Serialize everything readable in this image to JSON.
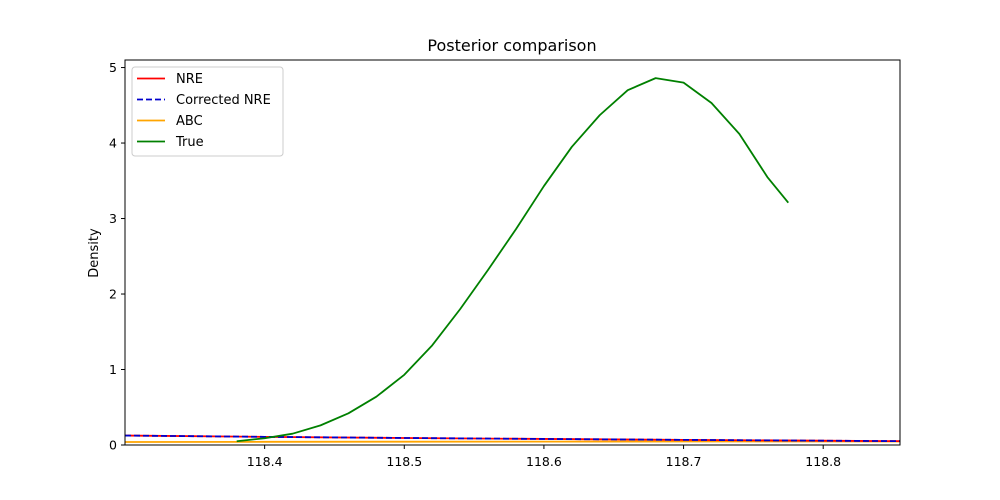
{
  "chart_data": {
    "type": "line",
    "title": "Posterior comparison",
    "xlabel": "",
    "ylabel": "Density",
    "xlim": [
      118.3,
      118.855
    ],
    "ylim": [
      0,
      5.1
    ],
    "xticks": [
      "118.4",
      "118.5",
      "118.6",
      "118.7",
      "118.8"
    ],
    "xtick_values": [
      118.4,
      118.5,
      118.6,
      118.7,
      118.8
    ],
    "yticks": [
      "0",
      "1",
      "2",
      "3",
      "4",
      "5"
    ],
    "ytick_values": [
      0,
      1,
      2,
      3,
      4,
      5
    ],
    "grid": false,
    "legend_position": "top-left",
    "series": [
      {
        "name": "NRE",
        "color": "#ff0000",
        "dash": "solid",
        "x": [
          118.3,
          118.4,
          118.5,
          118.6,
          118.7,
          118.8,
          118.855
        ],
        "y": [
          0.125,
          0.108,
          0.093,
          0.08,
          0.068,
          0.057,
          0.051
        ]
      },
      {
        "name": "Corrected NRE",
        "color": "#0000cc",
        "dash": "dashed",
        "x": [
          118.3,
          118.4,
          118.5,
          118.6,
          118.7,
          118.8,
          118.855
        ],
        "y": [
          0.125,
          0.108,
          0.093,
          0.08,
          0.068,
          0.057,
          0.051
        ]
      },
      {
        "name": "ABC",
        "color": "#ffa500",
        "dash": "solid",
        "x": [
          118.3,
          118.4,
          118.5,
          118.6,
          118.7,
          118.8,
          118.855
        ],
        "y": [
          0.04,
          0.042,
          0.044,
          0.045,
          0.046,
          0.047,
          0.047
        ]
      },
      {
        "name": "True",
        "color": "#008000",
        "dash": "solid",
        "x": [
          118.38,
          118.4,
          118.42,
          118.44,
          118.46,
          118.48,
          118.5,
          118.52,
          118.54,
          118.56,
          118.58,
          118.6,
          118.62,
          118.64,
          118.66,
          118.68,
          118.7,
          118.72,
          118.74,
          118.76,
          118.775
        ],
        "y": [
          0.05,
          0.09,
          0.15,
          0.26,
          0.42,
          0.64,
          0.93,
          1.32,
          1.8,
          2.32,
          2.86,
          3.43,
          3.95,
          4.37,
          4.7,
          4.86,
          4.8,
          4.53,
          4.12,
          3.55,
          3.21
        ]
      }
    ]
  }
}
